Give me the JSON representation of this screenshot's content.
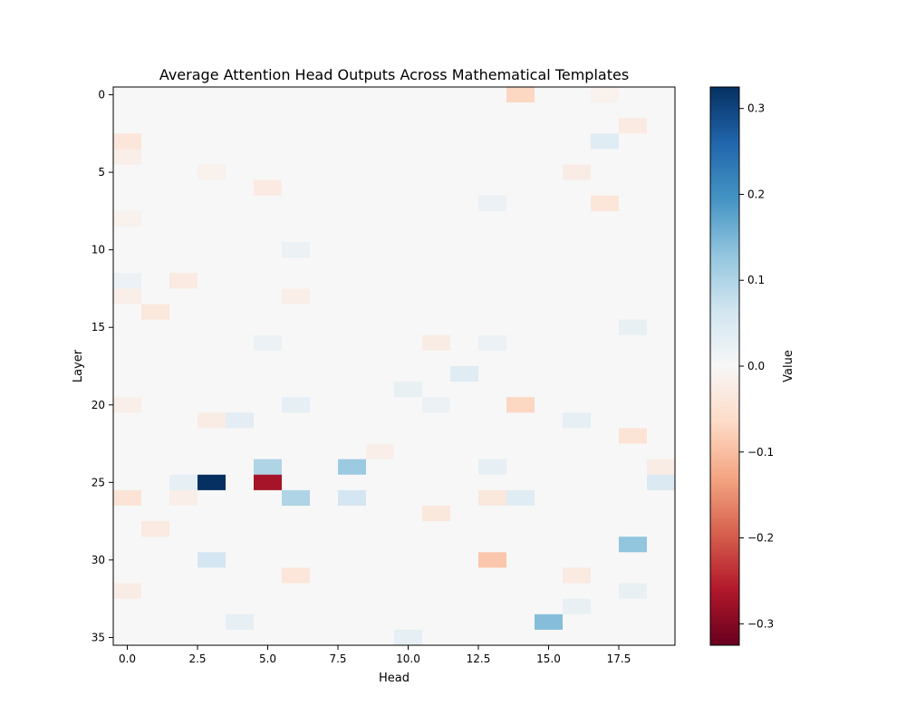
{
  "chart_data": {
    "type": "heatmap",
    "title": "Average Attention Head Outputs Across Mathematical Templates",
    "xlabel": "Head",
    "ylabel": "Layer",
    "colorbar_label": "Value",
    "colormap": "RdBu",
    "vmin": -0.325,
    "vmax": 0.325,
    "n_cols": 20,
    "n_rows": 36,
    "x_ticks": [
      0,
      2.5,
      5,
      7.5,
      10,
      12.5,
      15,
      17.5
    ],
    "x_tick_labels": [
      "0.0",
      "2.5",
      "5.0",
      "7.5",
      "10.0",
      "12.5",
      "15.0",
      "17.5"
    ],
    "y_ticks": [
      0,
      5,
      10,
      15,
      20,
      25,
      30,
      35
    ],
    "y_tick_labels": [
      "0",
      "5",
      "10",
      "15",
      "20",
      "25",
      "30",
      "35"
    ],
    "colorbar_ticks": [
      0.3,
      0.2,
      0.1,
      0.0,
      -0.1,
      -0.2,
      -0.3
    ],
    "colorbar_tick_labels": [
      "0.3",
      "0.2",
      "0.1",
      "0.0",
      "−0.1",
      "−0.2",
      "−0.3"
    ],
    "background_value": 0.0,
    "notable_cells": [
      {
        "layer": 0,
        "head": 14,
        "value": -0.07
      },
      {
        "layer": 0,
        "head": 17,
        "value": -0.015
      },
      {
        "layer": 2,
        "head": 18,
        "value": -0.03
      },
      {
        "layer": 3,
        "head": 0,
        "value": -0.04
      },
      {
        "layer": 3,
        "head": 17,
        "value": 0.04
      },
      {
        "layer": 4,
        "head": 0,
        "value": -0.02
      },
      {
        "layer": 5,
        "head": 3,
        "value": -0.015
      },
      {
        "layer": 5,
        "head": 16,
        "value": -0.025
      },
      {
        "layer": 6,
        "head": 5,
        "value": -0.03
      },
      {
        "layer": 7,
        "head": 13,
        "value": 0.02
      },
      {
        "layer": 7,
        "head": 17,
        "value": -0.04
      },
      {
        "layer": 8,
        "head": 0,
        "value": -0.015
      },
      {
        "layer": 10,
        "head": 6,
        "value": 0.02
      },
      {
        "layer": 12,
        "head": 0,
        "value": 0.02
      },
      {
        "layer": 12,
        "head": 2,
        "value": -0.03
      },
      {
        "layer": 13,
        "head": 0,
        "value": -0.02
      },
      {
        "layer": 13,
        "head": 6,
        "value": -0.02
      },
      {
        "layer": 14,
        "head": 1,
        "value": -0.035
      },
      {
        "layer": 15,
        "head": 18,
        "value": 0.025
      },
      {
        "layer": 16,
        "head": 5,
        "value": 0.02
      },
      {
        "layer": 16,
        "head": 11,
        "value": -0.025
      },
      {
        "layer": 16,
        "head": 13,
        "value": 0.02
      },
      {
        "layer": 18,
        "head": 12,
        "value": 0.04
      },
      {
        "layer": 19,
        "head": 10,
        "value": 0.025
      },
      {
        "layer": 20,
        "head": 0,
        "value": -0.02
      },
      {
        "layer": 20,
        "head": 6,
        "value": 0.03
      },
      {
        "layer": 20,
        "head": 11,
        "value": 0.02
      },
      {
        "layer": 20,
        "head": 14,
        "value": -0.07
      },
      {
        "layer": 21,
        "head": 3,
        "value": -0.025
      },
      {
        "layer": 21,
        "head": 4,
        "value": 0.035
      },
      {
        "layer": 21,
        "head": 16,
        "value": 0.03
      },
      {
        "layer": 22,
        "head": 18,
        "value": -0.045
      },
      {
        "layer": 23,
        "head": 9,
        "value": -0.02
      },
      {
        "layer": 24,
        "head": 5,
        "value": 0.1
      },
      {
        "layer": 24,
        "head": 8,
        "value": 0.12
      },
      {
        "layer": 24,
        "head": 13,
        "value": 0.03
      },
      {
        "layer": 24,
        "head": 19,
        "value": -0.025
      },
      {
        "layer": 25,
        "head": 2,
        "value": 0.03
      },
      {
        "layer": 25,
        "head": 3,
        "value": 0.325
      },
      {
        "layer": 25,
        "head": 5,
        "value": -0.27
      },
      {
        "layer": 25,
        "head": 19,
        "value": 0.05
      },
      {
        "layer": 26,
        "head": 0,
        "value": -0.045
      },
      {
        "layer": 26,
        "head": 2,
        "value": -0.02
      },
      {
        "layer": 26,
        "head": 6,
        "value": 0.1
      },
      {
        "layer": 26,
        "head": 8,
        "value": 0.06
      },
      {
        "layer": 26,
        "head": 13,
        "value": -0.035
      },
      {
        "layer": 26,
        "head": 14,
        "value": 0.04
      },
      {
        "layer": 27,
        "head": 11,
        "value": -0.035
      },
      {
        "layer": 28,
        "head": 1,
        "value": -0.03
      },
      {
        "layer": 29,
        "head": 18,
        "value": 0.13
      },
      {
        "layer": 30,
        "head": 3,
        "value": 0.06
      },
      {
        "layer": 30,
        "head": 13,
        "value": -0.09
      },
      {
        "layer": 31,
        "head": 6,
        "value": -0.04
      },
      {
        "layer": 31,
        "head": 16,
        "value": -0.03
      },
      {
        "layer": 32,
        "head": 0,
        "value": -0.025
      },
      {
        "layer": 32,
        "head": 18,
        "value": 0.025
      },
      {
        "layer": 33,
        "head": 16,
        "value": 0.025
      },
      {
        "layer": 34,
        "head": 4,
        "value": 0.03
      },
      {
        "layer": 34,
        "head": 15,
        "value": 0.14
      },
      {
        "layer": 35,
        "head": 10,
        "value": 0.03
      }
    ]
  }
}
